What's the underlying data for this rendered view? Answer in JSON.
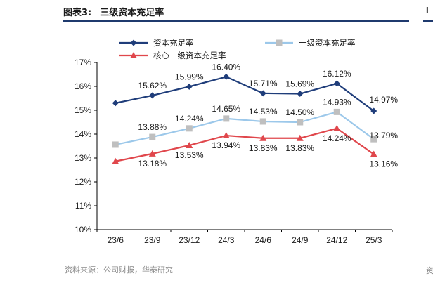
{
  "figure": {
    "number": "图表3:",
    "title": "三级资本充足率",
    "source": "资料来源：公司财报，华泰研究"
  },
  "colors": {
    "rule": "#1f3a6e",
    "series": [
      "#1f3d7a",
      "#9cc8ea",
      "#e0474c"
    ],
    "tier1_marker": "#bfbfbf"
  },
  "chart_data": {
    "type": "line",
    "categories": [
      "23/6",
      "23/9",
      "23/12",
      "24/3",
      "24/6",
      "24/9",
      "24/12",
      "25/3"
    ],
    "ylim": [
      10,
      17
    ],
    "yticks": [
      10,
      11,
      12,
      13,
      14,
      15,
      16,
      17
    ],
    "y_tick_format": "percent",
    "grid": false,
    "legend": "top",
    "series": [
      {
        "name": "资本充足率",
        "values": [
          15.3,
          15.62,
          15.99,
          16.4,
          15.71,
          15.69,
          16.12,
          14.97
        ],
        "labels": [
          "",
          "15.62%",
          "15.99%",
          "16.40%",
          "15.71%",
          "15.69%",
          "16.12%",
          "14.97%"
        ],
        "marker": "diamond"
      },
      {
        "name": "一级资本充足率",
        "values": [
          13.56,
          13.88,
          14.24,
          14.65,
          14.53,
          14.5,
          14.93,
          13.79
        ],
        "labels": [
          "",
          "13.88%",
          "14.24%",
          "14.65%",
          "14.53%",
          "14.50%",
          "14.93%",
          "13.79%"
        ],
        "marker": "square"
      },
      {
        "name": "核心一级资本充足率",
        "values": [
          12.86,
          13.18,
          13.53,
          13.94,
          13.83,
          13.83,
          14.24,
          13.16
        ],
        "labels": [
          "",
          "13.18%",
          "13.53%",
          "13.94%",
          "13.83%",
          "13.83%",
          "14.24%",
          "13.16%"
        ],
        "marker": "triangle"
      }
    ]
  }
}
